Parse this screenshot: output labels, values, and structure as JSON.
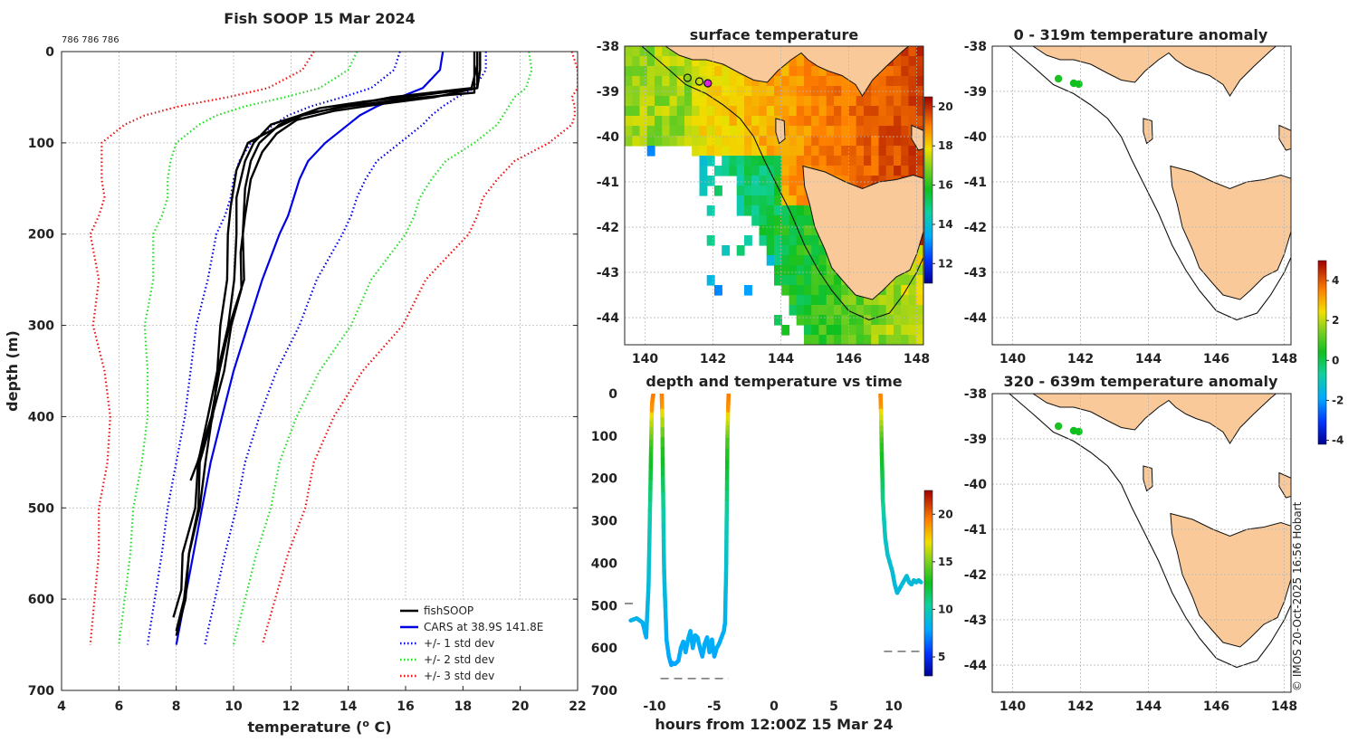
{
  "colors": {
    "fishsoop": "#000000",
    "cars": "#0000e6",
    "std1": "#0000e6",
    "std2": "#22dd22",
    "std3": "#ee1111",
    "land": "#f9c99a",
    "coast": "#111111"
  },
  "watermark": "© IMOS 20-Oct-2025 16:56 Hobart",
  "chart_data": [
    {
      "id": "profile",
      "type": "line",
      "title": "Fish SOOP 15 Mar 2024",
      "subtitle": "786 786 786",
      "xlabel": "temperature (° C)",
      "xlabel_pre": "temperature (",
      "xlabel_sup": "o",
      "xlabel_post": " C)",
      "ylabel": "depth (m)",
      "xlim": [
        4,
        22
      ],
      "ylim": [
        700,
        0
      ],
      "xticks": [
        4,
        6,
        8,
        10,
        12,
        14,
        16,
        18,
        20,
        22
      ],
      "yticks": [
        0,
        100,
        200,
        300,
        400,
        500,
        600,
        700
      ],
      "grid": true,
      "legend_position": "bottom-right",
      "legend": [
        "fishSOOP",
        "CARS at 38.9S 141.8E",
        "+/- 1 std dev",
        "+/- 2 std dev",
        "+/- 3 std dev"
      ],
      "cars": {
        "depth": [
          0,
          20,
          40,
          50,
          60,
          70,
          80,
          100,
          120,
          140,
          160,
          180,
          200,
          250,
          300,
          350,
          400,
          450,
          500,
          550,
          600,
          650
        ],
        "mean": [
          17.3,
          17.2,
          16.6,
          15.8,
          15.0,
          14.4,
          14.0,
          13.2,
          12.6,
          12.3,
          12.1,
          11.9,
          11.6,
          11.0,
          10.5,
          10.0,
          9.6,
          9.2,
          8.9,
          8.6,
          8.3,
          8.0
        ]
      },
      "std": [
        {
          "name": "+/- 1 std dev",
          "minus": [
            -1.5,
            -1.6,
            -1.8,
            -2.0,
            -2.3,
            -2.5,
            -2.6,
            -2.6,
            -2.4,
            -2.3,
            -2.2,
            -2.2,
            -2.2,
            -1.9,
            -1.8,
            -1.5,
            -1.3,
            -1.2,
            -1.2,
            -1.1,
            -1.05,
            -1.0
          ],
          "plus": [
            1.5,
            1.6,
            1.8,
            2.0,
            2.3,
            2.5,
            2.6,
            2.6,
            2.4,
            2.3,
            2.2,
            2.2,
            2.2,
            1.9,
            1.8,
            1.5,
            1.3,
            1.2,
            1.2,
            1.1,
            1.05,
            1.0
          ]
        },
        {
          "name": "+/- 2 std dev",
          "minus": [
            -3.0,
            -3.2,
            -3.6,
            -4.0,
            -4.6,
            -5.0,
            -5.2,
            -5.2,
            -4.8,
            -4.6,
            -4.4,
            -4.4,
            -4.4,
            -3.8,
            -3.6,
            -3.0,
            -2.6,
            -2.4,
            -2.4,
            -2.2,
            -2.1,
            -2.0
          ],
          "plus": [
            3.0,
            3.2,
            3.6,
            4.0,
            4.6,
            5.0,
            5.2,
            5.2,
            4.8,
            4.6,
            4.4,
            4.4,
            4.4,
            3.8,
            3.6,
            3.0,
            2.6,
            2.4,
            2.4,
            2.2,
            2.1,
            2.0
          ]
        },
        {
          "name": "+/- 3 std dev",
          "minus": [
            -4.5,
            -4.8,
            -5.4,
            -6.0,
            -6.9,
            -7.5,
            -7.8,
            -7.8,
            -7.2,
            -6.9,
            -6.6,
            -6.6,
            -6.6,
            -5.7,
            -5.4,
            -4.5,
            -3.9,
            -3.6,
            -3.6,
            -3.3,
            -3.15,
            -3.0
          ],
          "plus": [
            4.5,
            4.8,
            5.4,
            6.0,
            6.9,
            7.5,
            7.8,
            7.8,
            7.2,
            6.9,
            6.6,
            6.6,
            6.6,
            5.7,
            5.4,
            4.5,
            3.9,
            3.6,
            3.6,
            3.3,
            3.15,
            3.0
          ]
        }
      ],
      "fishsoop": [
        {
          "depth": [
            0,
            20,
            40,
            48,
            55,
            62,
            70,
            80,
            100,
            120,
            150,
            200,
            250,
            300,
            350,
            400,
            450,
            470
          ],
          "temp": [
            18.5,
            18.5,
            18.5,
            16.5,
            14.5,
            13.0,
            12.3,
            11.6,
            10.9,
            10.6,
            10.4,
            10.4,
            10.3,
            9.9,
            9.5,
            9.2,
            8.8,
            8.5
          ]
        },
        {
          "depth": [
            0,
            20,
            40,
            50,
            58,
            65,
            75,
            90,
            110,
            140,
            180,
            220,
            260,
            300,
            350,
            400,
            450,
            500,
            550,
            600,
            635
          ],
          "temp": [
            18.6,
            18.6,
            18.5,
            17.0,
            15.0,
            13.5,
            12.2,
            11.5,
            11.0,
            10.6,
            10.4,
            10.3,
            10.2,
            10.0,
            9.6,
            9.3,
            9.0,
            8.8,
            8.5,
            8.2,
            8.0
          ]
        },
        {
          "depth": [
            0,
            20,
            45,
            52,
            60,
            68,
            80,
            100,
            120,
            160,
            200,
            250,
            300,
            350,
            400,
            450,
            500,
            550,
            600,
            640
          ],
          "temp": [
            18.4,
            18.4,
            18.4,
            16.0,
            14.0,
            12.5,
            11.3,
            10.7,
            10.4,
            10.1,
            10.1,
            10.0,
            9.8,
            9.5,
            9.2,
            8.9,
            8.7,
            8.5,
            8.3,
            8.0
          ]
        },
        {
          "depth": [
            0,
            15,
            40,
            50,
            60,
            70,
            85,
            100,
            130,
            170,
            200,
            250,
            300,
            350,
            400,
            450,
            500,
            550,
            590,
            620
          ],
          "temp": [
            18.5,
            18.5,
            18.3,
            15.5,
            13.8,
            12.4,
            11.4,
            10.5,
            10.1,
            9.9,
            9.8,
            9.7,
            9.6,
            9.4,
            9.1,
            8.8,
            8.6,
            8.3,
            8.1,
            7.9
          ]
        }
      ]
    },
    {
      "id": "sst",
      "type": "heatmap",
      "title": "surface temperature",
      "xlim": [
        139.4,
        148.2
      ],
      "ylim": [
        -44.6,
        -38
      ],
      "xticks": [
        140,
        142,
        144,
        146,
        148
      ],
      "yticks": [
        -38,
        -39,
        -40,
        -41,
        -42,
        -43,
        -44
      ],
      "colorbar": {
        "ticks": [
          12,
          14,
          16,
          18,
          20
        ],
        "range": [
          11,
          20.5
        ]
      },
      "stations": [
        {
          "lon": 141.25,
          "lat": -38.7
        },
        {
          "lon": 141.6,
          "lat": -38.78
        },
        {
          "lon": 141.85,
          "lat": -38.82
        }
      ]
    },
    {
      "id": "anomaly_upper",
      "type": "scatter",
      "title": "0 - 319m temperature anomaly",
      "xlim": [
        139.4,
        148.2
      ],
      "ylim": [
        -44.6,
        -38
      ],
      "xticks": [
        140,
        142,
        144,
        146,
        148
      ],
      "yticks": [
        -38,
        -39,
        -40,
        -41,
        -42,
        -43,
        -44
      ],
      "points": [
        {
          "lon": 141.35,
          "lat": -38.72,
          "anomaly": 0.5
        },
        {
          "lon": 141.8,
          "lat": -38.82,
          "anomaly": 0.4
        },
        {
          "lon": 141.95,
          "lat": -38.84,
          "anomaly": 0.4
        }
      ]
    },
    {
      "id": "anomaly_lower",
      "type": "scatter",
      "title": "320 - 639m temperature anomaly",
      "xlim": [
        139.4,
        148.2
      ],
      "ylim": [
        -44.6,
        -38
      ],
      "xticks": [
        140,
        142,
        144,
        146,
        148
      ],
      "yticks": [
        -38,
        -39,
        -40,
        -41,
        -42,
        -43,
        -44
      ],
      "points": [
        {
          "lon": 141.35,
          "lat": -38.72,
          "anomaly": 0.5
        },
        {
          "lon": 141.8,
          "lat": -38.82,
          "anomaly": 0.4
        },
        {
          "lon": 141.95,
          "lat": -38.84,
          "anomaly": 0.4
        }
      ]
    },
    {
      "id": "anomaly_colorbar",
      "type": "colorbar",
      "ticks": [
        -4,
        -2,
        0,
        2,
        4
      ],
      "range": [
        -4.2,
        5
      ]
    },
    {
      "id": "timeseries",
      "type": "scatter",
      "title": "depth and temperature vs time",
      "xlabel": "hours from 12:00Z 15 Mar 24",
      "xlim": [
        -12.5,
        12.5
      ],
      "ylim": [
        700,
        0
      ],
      "xticks": [
        -10,
        -5,
        0,
        5,
        10
      ],
      "yticks": [
        0,
        100,
        200,
        300,
        400,
        500,
        600,
        700
      ],
      "colorbar": {
        "ticks": [
          5,
          10,
          15,
          20
        ],
        "range": [
          3,
          22.5
        ]
      },
      "bottom_markers": [
        {
          "x0": -12.5,
          "x1": -11.8,
          "depth": 495
        },
        {
          "x0": -9.5,
          "x1": -3.8,
          "depth": 672
        },
        {
          "x0": 9.2,
          "x1": 12.3,
          "depth": 608
        }
      ],
      "tracks": [
        {
          "t": [
            -12.0,
            -11.5,
            -11.0,
            -10.7,
            -10.5,
            -10.4,
            -10.3,
            -10.25,
            -10.2,
            -10.1
          ],
          "d": [
            535,
            530,
            540,
            575,
            450,
            300,
            150,
            60,
            20,
            0
          ]
        },
        {
          "t": [
            -9.4,
            -9.35,
            -9.3,
            -9.2,
            -9.0,
            -8.8,
            -8.6,
            -8.5,
            -8.3,
            -8.0,
            -7.8,
            -7.6,
            -7.4,
            -7.2,
            -7.0,
            -6.8,
            -6.6,
            -6.4,
            -6.2,
            -6.0,
            -5.8,
            -5.6,
            -5.4,
            -5.2,
            -5.0,
            -4.8,
            -4.6,
            -4.4,
            -4.2,
            -4.1,
            -4.0,
            -3.95,
            -3.9,
            -3.85,
            -3.8
          ],
          "d": [
            0,
            60,
            200,
            420,
            580,
            620,
            640,
            635,
            638,
            630,
            600,
            585,
            610,
            580,
            560,
            600,
            570,
            575,
            600,
            620,
            590,
            575,
            610,
            580,
            620,
            600,
            590,
            575,
            560,
            540,
            400,
            250,
            100,
            40,
            0
          ]
        },
        {
          "t": [
            8.9,
            8.95,
            9.0,
            9.1,
            9.3,
            9.5,
            9.7,
            9.9,
            10.1,
            10.3,
            10.5,
            10.7,
            10.9,
            11.1,
            11.3,
            11.5,
            11.7,
            11.9,
            12.1,
            12.3
          ],
          "d": [
            0,
            40,
            120,
            250,
            340,
            380,
            400,
            420,
            450,
            470,
            460,
            450,
            440,
            430,
            445,
            450,
            440,
            445,
            440,
            445
          ]
        }
      ]
    }
  ]
}
